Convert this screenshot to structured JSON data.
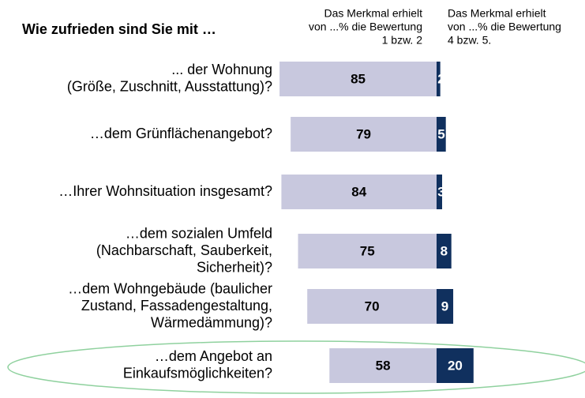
{
  "chart_data": {
    "type": "diverging_bar",
    "title": "Wie zufrieden sind Sie mit …",
    "categories": [
      [
        "... der Wohnung",
        "(Größe, Zuschnitt, Ausstattung)?"
      ],
      [
        "…dem Grünflächenangebot?"
      ],
      [
        "…Ihrer Wohnsituation insgesamt?"
      ],
      [
        "…dem sozialen Umfeld",
        "(Nachbarschaft, Sauberkeit,",
        "Sicherheit)?"
      ],
      [
        "…dem Wohngebäude (baulicher",
        "Zustand, Fassadengestaltung,",
        "Wärmedämmung)?"
      ],
      [
        "…dem Angebot an",
        "Einkaufsmöglichkeiten?"
      ]
    ],
    "series": [
      {
        "name": [
          "Das Merkmal erhielt",
          "von ...% die  Bewertung",
          "1 bzw. 2"
        ],
        "color": "#c8c8de",
        "values": [
          85,
          79,
          84,
          75,
          70,
          58
        ]
      },
      {
        "name": [
          "Das Merkmal erhielt",
          "von ...% die Bewertung",
          "4 bzw. 5."
        ],
        "color": "#10305e",
        "values": [
          2,
          5,
          3,
          8,
          9,
          20
        ]
      }
    ]
  }
}
